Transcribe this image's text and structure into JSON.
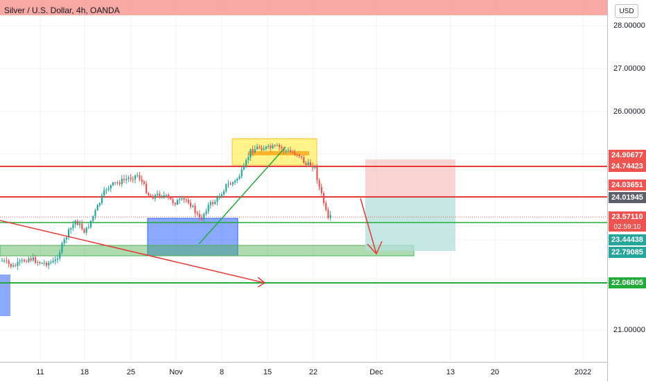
{
  "chart_title": "Silver / U.S. Dollar, 4h, OANDA",
  "currency": "USD",
  "axis": {
    "price_ticks": [
      "28.00000",
      "27.00000",
      "26.00000",
      "21.00000"
    ],
    "time_labels": [
      "11",
      "18",
      "25",
      "Nov",
      "8",
      "15",
      "22",
      "Dec",
      "13",
      "20",
      "2022"
    ]
  },
  "price_tags": [
    {
      "label": "24.90677",
      "color": "#ef5350"
    },
    {
      "label": "24.74423",
      "color": "#ef5350"
    },
    {
      "label": "24.03651",
      "color": "#ef5350"
    },
    {
      "label": "24.01945",
      "color": "#5d606b"
    },
    {
      "label": "23.57110",
      "color": "#ef5350"
    },
    {
      "label": "23.44438",
      "color": "#26a69a"
    },
    {
      "label": "22.79085",
      "color": "#26a69a"
    },
    {
      "label": "22.06805",
      "color": "#22ab3a"
    }
  ],
  "countdown": "02:59:10",
  "colors": {
    "bull": "#26a69a",
    "bear": "#ef5350",
    "support_line": "#22ab3a",
    "resistance_line": "#e53935",
    "blue_zone": "#2962ff",
    "yellow_zone": "#ffeb3b",
    "top_zone": "#f8a09a"
  }
}
